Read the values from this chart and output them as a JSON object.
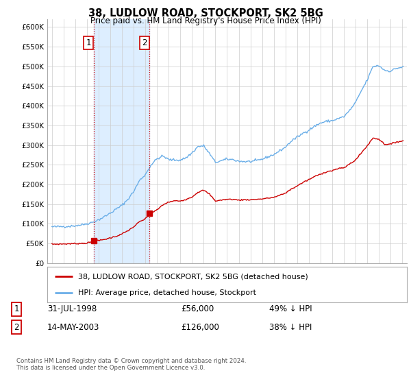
{
  "title": "38, LUDLOW ROAD, STOCKPORT, SK2 5BG",
  "subtitle": "Price paid vs. HM Land Registry's House Price Index (HPI)",
  "ylabel_ticks": [
    "£0",
    "£50K",
    "£100K",
    "£150K",
    "£200K",
    "£250K",
    "£300K",
    "£350K",
    "£400K",
    "£450K",
    "£500K",
    "£550K",
    "£600K"
  ],
  "ytick_values": [
    0,
    50000,
    100000,
    150000,
    200000,
    250000,
    300000,
    350000,
    400000,
    450000,
    500000,
    550000,
    600000
  ],
  "ylim": [
    0,
    620000
  ],
  "xlim_start": 1994.6,
  "xlim_end": 2025.4,
  "sale1_date": 1998.58,
  "sale1_price": 56000,
  "sale2_date": 2003.37,
  "sale2_price": 126000,
  "highlight_color": "#ddeeff",
  "highlight_x1": 1998.58,
  "highlight_x2": 2003.37,
  "legend_line1": "38, LUDLOW ROAD, STOCKPORT, SK2 5BG (detached house)",
  "legend_line2": "HPI: Average price, detached house, Stockport",
  "table_row1": [
    "1",
    "31-JUL-1998",
    "£56,000",
    "49% ↓ HPI"
  ],
  "table_row2": [
    "2",
    "14-MAY-2003",
    "£126,000",
    "38% ↓ HPI"
  ],
  "footer": "Contains HM Land Registry data © Crown copyright and database right 2024.\nThis data is licensed under the Open Government Licence v3.0.",
  "red_color": "#cc0000",
  "blue_color": "#6aaee8",
  "background_color": "#ffffff",
  "grid_color": "#cccccc",
  "hpi_base": [
    [
      1995.0,
      92000
    ],
    [
      1995.5,
      92500
    ],
    [
      1996.0,
      93000
    ],
    [
      1996.5,
      93500
    ],
    [
      1997.0,
      95000
    ],
    [
      1997.5,
      97000
    ],
    [
      1998.0,
      100000
    ],
    [
      1998.5,
      104000
    ],
    [
      1999.0,
      110000
    ],
    [
      1999.5,
      118000
    ],
    [
      2000.0,
      127000
    ],
    [
      2000.5,
      137000
    ],
    [
      2001.0,
      147000
    ],
    [
      2001.5,
      162000
    ],
    [
      2002.0,
      182000
    ],
    [
      2002.5,
      210000
    ],
    [
      2003.0,
      225000
    ],
    [
      2003.5,
      250000
    ],
    [
      2004.0,
      265000
    ],
    [
      2004.5,
      272000
    ],
    [
      2005.0,
      263000
    ],
    [
      2005.5,
      262000
    ],
    [
      2006.0,
      262000
    ],
    [
      2006.5,
      268000
    ],
    [
      2007.0,
      280000
    ],
    [
      2007.5,
      296000
    ],
    [
      2008.0,
      298000
    ],
    [
      2008.5,
      278000
    ],
    [
      2009.0,
      256000
    ],
    [
      2009.5,
      260000
    ],
    [
      2010.0,
      264000
    ],
    [
      2010.5,
      263000
    ],
    [
      2011.0,
      259000
    ],
    [
      2011.5,
      258000
    ],
    [
      2012.0,
      258000
    ],
    [
      2012.5,
      260000
    ],
    [
      2013.0,
      264000
    ],
    [
      2013.5,
      270000
    ],
    [
      2014.0,
      276000
    ],
    [
      2014.5,
      285000
    ],
    [
      2015.0,
      295000
    ],
    [
      2015.5,
      310000
    ],
    [
      2016.0,
      320000
    ],
    [
      2016.5,
      330000
    ],
    [
      2017.0,
      338000
    ],
    [
      2017.5,
      348000
    ],
    [
      2018.0,
      356000
    ],
    [
      2018.5,
      360000
    ],
    [
      2019.0,
      362000
    ],
    [
      2019.5,
      367000
    ],
    [
      2020.0,
      372000
    ],
    [
      2020.5,
      388000
    ],
    [
      2021.0,
      408000
    ],
    [
      2021.5,
      438000
    ],
    [
      2022.0,
      465000
    ],
    [
      2022.5,
      500000
    ],
    [
      2023.0,
      502000
    ],
    [
      2023.5,
      490000
    ],
    [
      2024.0,
      488000
    ],
    [
      2024.5,
      495000
    ],
    [
      2025.0,
      498000
    ]
  ],
  "red_base": [
    [
      1995.0,
      48000
    ],
    [
      1995.5,
      48200
    ],
    [
      1996.0,
      48500
    ],
    [
      1996.5,
      49000
    ],
    [
      1997.0,
      49500
    ],
    [
      1997.5,
      50000
    ],
    [
      1998.0,
      51000
    ],
    [
      1998.5,
      54000
    ],
    [
      1998.58,
      56000
    ],
    [
      1999.0,
      57000
    ],
    [
      1999.5,
      60000
    ],
    [
      2000.0,
      64000
    ],
    [
      2000.5,
      68000
    ],
    [
      2001.0,
      74000
    ],
    [
      2001.5,
      82000
    ],
    [
      2002.0,
      92000
    ],
    [
      2002.5,
      105000
    ],
    [
      2003.0,
      112000
    ],
    [
      2003.37,
      126000
    ],
    [
      2003.5,
      127000
    ],
    [
      2004.0,
      135000
    ],
    [
      2004.5,
      148000
    ],
    [
      2005.0,
      155000
    ],
    [
      2005.5,
      158000
    ],
    [
      2006.0,
      158000
    ],
    [
      2006.5,
      162000
    ],
    [
      2007.0,
      168000
    ],
    [
      2007.5,
      180000
    ],
    [
      2008.0,
      185000
    ],
    [
      2008.5,
      175000
    ],
    [
      2009.0,
      158000
    ],
    [
      2009.5,
      160000
    ],
    [
      2010.0,
      162000
    ],
    [
      2010.5,
      162000
    ],
    [
      2011.0,
      160000
    ],
    [
      2011.5,
      161000
    ],
    [
      2012.0,
      161000
    ],
    [
      2012.5,
      162000
    ],
    [
      2013.0,
      163000
    ],
    [
      2013.5,
      165000
    ],
    [
      2014.0,
      167000
    ],
    [
      2014.5,
      172000
    ],
    [
      2015.0,
      178000
    ],
    [
      2015.5,
      188000
    ],
    [
      2016.0,
      196000
    ],
    [
      2016.5,
      205000
    ],
    [
      2017.0,
      212000
    ],
    [
      2017.5,
      220000
    ],
    [
      2018.0,
      226000
    ],
    [
      2018.5,
      232000
    ],
    [
      2019.0,
      235000
    ],
    [
      2019.5,
      240000
    ],
    [
      2020.0,
      242000
    ],
    [
      2020.5,
      252000
    ],
    [
      2021.0,
      262000
    ],
    [
      2021.5,
      280000
    ],
    [
      2022.0,
      298000
    ],
    [
      2022.5,
      318000
    ],
    [
      2023.0,
      315000
    ],
    [
      2023.5,
      302000
    ],
    [
      2024.0,
      302000
    ],
    [
      2024.5,
      308000
    ],
    [
      2025.0,
      310000
    ]
  ]
}
